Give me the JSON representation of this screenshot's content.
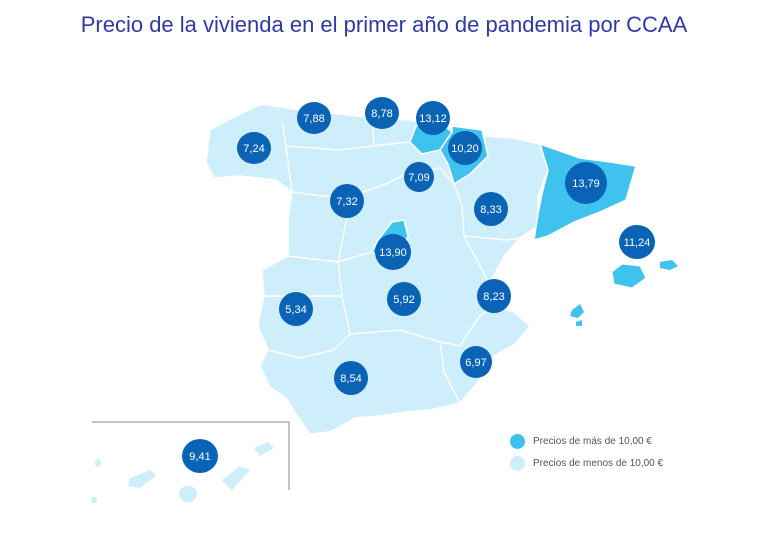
{
  "title": "Precio de la vivienda en el primer año de pandemia por CCAA",
  "colors": {
    "low": "#cdeefa",
    "high": "#3fc3ee",
    "bubble": "#0a63b5",
    "border": "#ffffff",
    "title": "#2f3aa3"
  },
  "regions": [
    {
      "label": "7,24",
      "level": "low"
    },
    {
      "label": "7,88",
      "level": "low"
    },
    {
      "label": "8,78",
      "level": "low"
    },
    {
      "label": "13,12",
      "level": "high"
    },
    {
      "label": "10,20",
      "level": "high"
    },
    {
      "label": "7,09",
      "level": "low"
    },
    {
      "label": "13,79",
      "level": "high"
    },
    {
      "label": "7,32",
      "level": "low"
    },
    {
      "label": "8,33",
      "level": "low"
    },
    {
      "label": "11,24",
      "level": "high"
    },
    {
      "label": "13,90",
      "level": "high"
    },
    {
      "label": "5,34",
      "level": "low"
    },
    {
      "label": "5,92",
      "level": "low"
    },
    {
      "label": "8,23",
      "level": "low"
    },
    {
      "label": "6,97",
      "level": "low"
    },
    {
      "label": "8,54",
      "level": "low"
    },
    {
      "label": "9,41",
      "level": "low"
    }
  ],
  "legend": {
    "high_label": "Precios de más de 10,00 €",
    "low_label": "Precios de menos de 10,00 €"
  }
}
